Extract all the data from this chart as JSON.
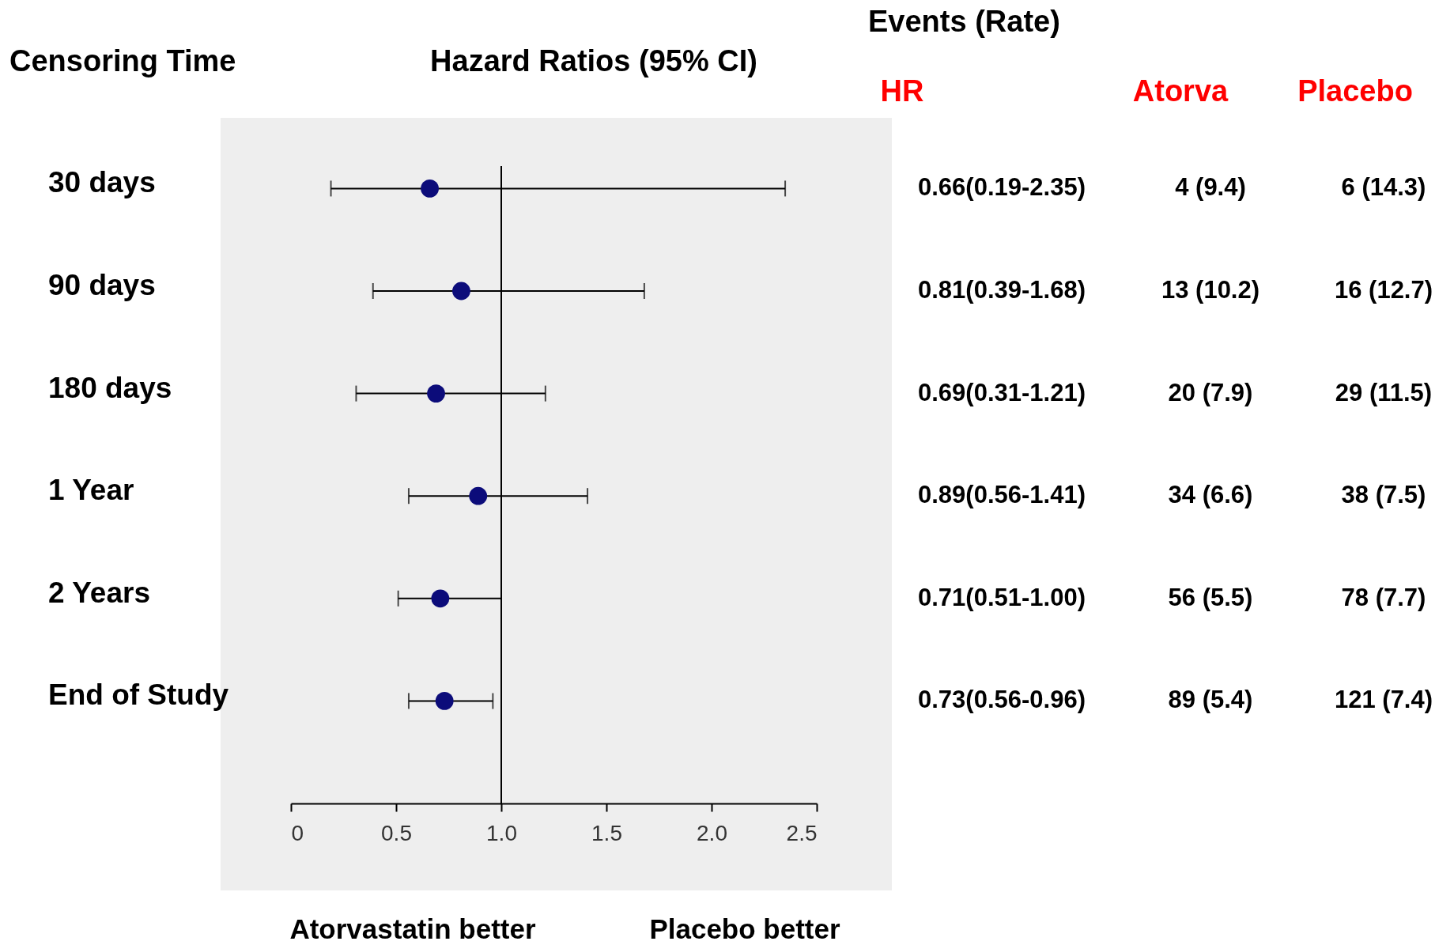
{
  "chart_data": {
    "type": "scatter",
    "orientation": "horizontal",
    "title": "Hazard Ratios (95% CI)",
    "ylabel": "Censoring Time",
    "categories": [
      "30 days",
      "90 days",
      "180 days",
      "1 Year",
      "2 Years",
      "End of Study"
    ],
    "values": [
      0.66,
      0.81,
      0.69,
      0.89,
      0.71,
      0.73
    ],
    "errors": [
      [
        0.19,
        2.35
      ],
      [
        0.39,
        1.68
      ],
      [
        0.31,
        1.21
      ],
      [
        0.56,
        1.41
      ],
      [
        0.51,
        1.0
      ],
      [
        0.56,
        0.96
      ]
    ],
    "value_labels": [
      "0.66(0.19-2.35)",
      "0.81(0.39-1.68)",
      "0.69(0.31-1.21)",
      "0.89(0.56-1.41)",
      "0.71(0.51-1.00)",
      "0.73(0.56-0.96)"
    ],
    "color": "#0c0c7a",
    "marker": "circle",
    "xlim": [
      0,
      2.5
    ],
    "xticks": [
      0,
      0.5,
      {
        "value": 1,
        "label": "1.0"
      },
      1.5,
      {
        "value": 2,
        "label": "2.0"
      },
      2.5
    ],
    "ref_lines": [
      {
        "axis": "x",
        "value": 1
      }
    ],
    "annotations": [
      "Events (Rate)",
      "HR",
      "Atorva",
      "Placebo",
      "4 (9.4)",
      "13 (10.2)",
      "20 (7.9)",
      "34 (6.6)",
      "56 (5.5)",
      "89 (5.4)",
      "6 (14.3)",
      "16 (12.7)",
      "29 (11.5)",
      "38 (7.5)",
      "78 (7.7)",
      "121 (7.4)",
      "Atorvastatin better",
      "Placebo better"
    ]
  }
}
